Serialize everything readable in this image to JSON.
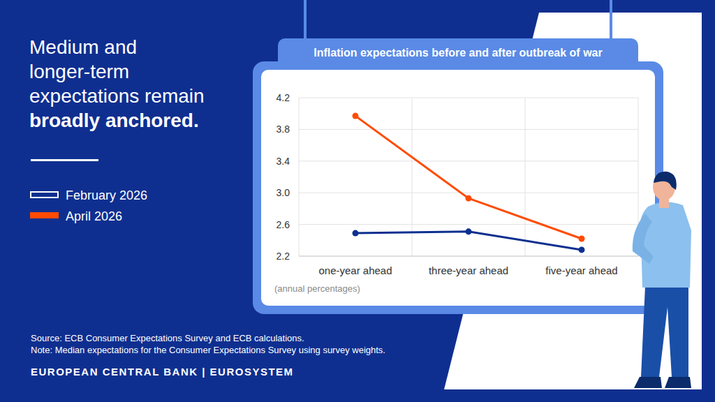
{
  "chart_data": {
    "type": "line",
    "title": "Inflation expectations before and after outbreak of war",
    "headline": "Medium and longer-term expectations remain",
    "headline_emphasis": "broadly anchored.",
    "y_label": "(annual percentages)",
    "categories": [
      "one-year ahead",
      "three-year ahead",
      "five-year ahead"
    ],
    "series": [
      {
        "name": "February 2026",
        "color": "#0d2f8f",
        "marker": "circle",
        "values": [
          2.49,
          2.51,
          2.28
        ]
      },
      {
        "name": "April 2026",
        "color": "#ff4b00",
        "marker": "circle",
        "values": [
          3.97,
          2.93,
          2.42
        ]
      }
    ],
    "ylim": [
      2.2,
      4.2
    ],
    "yticks": [
      2.2,
      2.6,
      {
        "value": 3,
        "label": "3.0"
      },
      3.4,
      3.8,
      4.2
    ],
    "grid": true,
    "legend": "left",
    "source": "Source: ECB Consumer Expectations Survey and ECB calculations.",
    "note": "Note: Median expectations for the Consumer Expectations Survey using survey weights.",
    "publisher": "EUROPEAN CENTRAL BANK | EUROSYSTEM"
  }
}
